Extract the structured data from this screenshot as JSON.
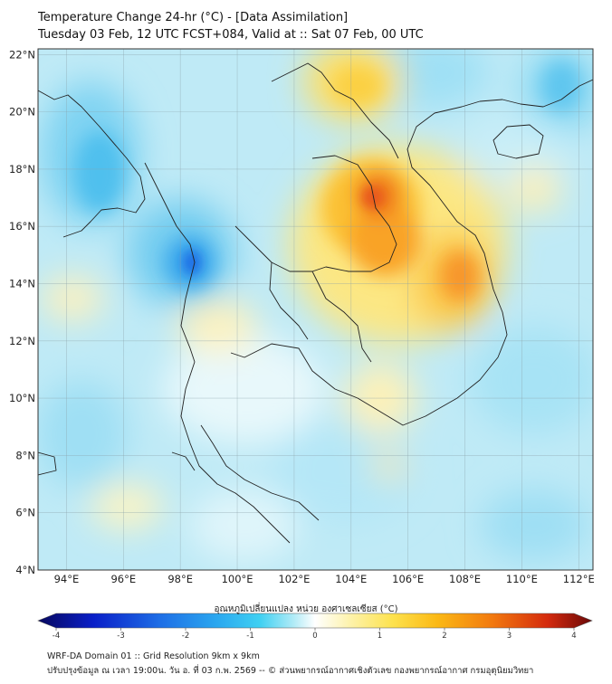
{
  "title": {
    "line1": "Temperature Change 24-hr (°C) - [Data Assimilation]",
    "line2": "Tuesday 03 Feb, 12 UTC FCST+084, Valid at :: Sat 07 Feb, 00 UTC"
  },
  "map": {
    "lat_labels": [
      "22°N",
      "20°N",
      "18°N",
      "16°N",
      "14°N",
      "12°N",
      "10°N",
      "8°N",
      "6°N",
      "4°N"
    ],
    "lon_labels": [
      "94°E",
      "96°E",
      "98°E",
      "100°E",
      "102°E",
      "104°E",
      "106°E",
      "108°E",
      "110°E",
      "112°E"
    ],
    "lat_range": [
      4,
      22.2
    ],
    "lon_range": [
      93,
      112.5
    ],
    "hotspots": [
      {
        "name": "warm-north-laos",
        "value": 1.5
      },
      {
        "name": "warm-ne-thailand",
        "value": 2.3
      },
      {
        "name": "warm-central-vietnam",
        "value": 2.0
      },
      {
        "name": "cool-myanmar-border",
        "value": -2.3
      }
    ]
  },
  "colorbar": {
    "title": "อุณหภูมิเปลี่ยนแปลง หน่วย องศาเซลเซียส (°C)",
    "ticks": [
      "-4",
      "-3",
      "-2",
      "-1",
      "0",
      "1",
      "2",
      "3",
      "4"
    ],
    "range": [
      -4,
      4
    ],
    "colors": [
      "#08085e",
      "#0a1fc8",
      "#1e6ee6",
      "#2aa6ef",
      "#3fd0f2",
      "#aeeaf6",
      "#ffffff",
      "#fdf3b0",
      "#fde24d",
      "#fbb915",
      "#f2790f",
      "#d42a0e",
      "#6a0808"
    ]
  },
  "footer": {
    "line1": "WRF-DA Domain 01 :: Grid Resolution 9km x 9km",
    "line2": "ปรับปรุงข้อมูล ณ เวลา 19:00น. วัน อ. ที่ 03 ก.พ. 2569 -- © ส่วนพยากรณ์อากาศเชิงตัวเลข กองพยากรณ์อากาศ กรมอุตุนิยมวิทยา"
  }
}
